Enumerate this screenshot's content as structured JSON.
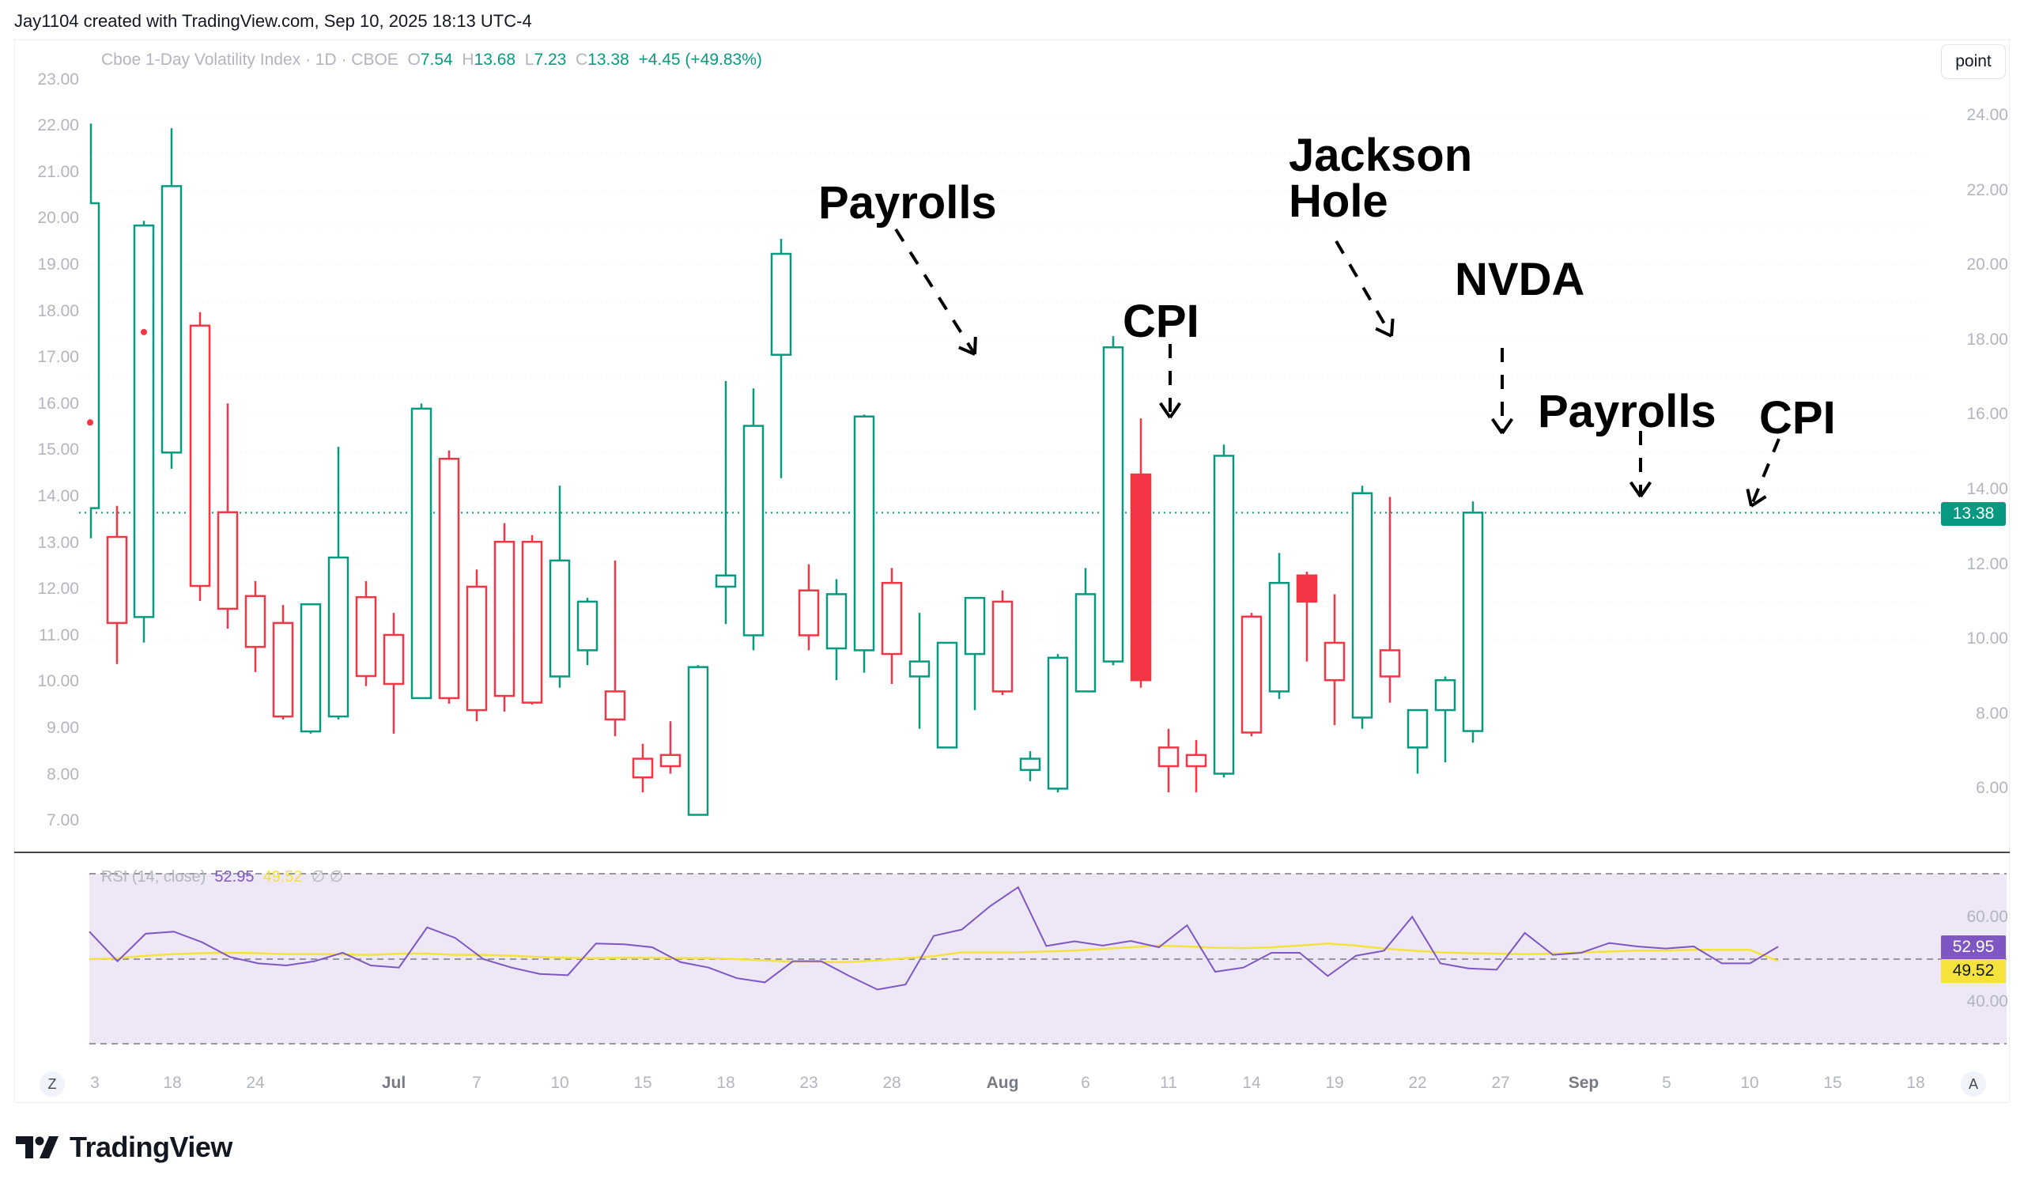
{
  "credit": "Jay1104 created with TradingView.com, Sep 10, 2025 18:13 UTC-4",
  "legend": {
    "title": "Cboe 1-Day Volatility Index · 1D · CBOE",
    "o_label": "O",
    "o_value": "7.54",
    "h_label": "H",
    "h_value": "13.68",
    "l_label": "L",
    "l_value": "7.23",
    "c_label": "C",
    "c_value": "13.38",
    "change": "+4.45 (+49.83%)"
  },
  "scale_button": "point",
  "colors": {
    "up": "#089981",
    "down": "#f23645",
    "rsi": "#7e57c2",
    "rsi_ma": "#f5e23a",
    "rsi_band": "#ede7f6"
  },
  "last_price_tag": "13.38",
  "rsi": {
    "name": "RSI (14, close)",
    "value": "52.95",
    "ma_value": "49.52",
    "hidden_icons": "∅ ∅"
  },
  "footer_logo": "TradingView",
  "z_button": "Z",
  "a_button": "A",
  "annotations": [
    {
      "text": "Payrolls",
      "target_index": 20
    },
    {
      "text": "CPI",
      "target_index": 25
    },
    {
      "text": "Jackson\nHole",
      "target_index": 31
    },
    {
      "text": "NVDA",
      "target_index": 35
    },
    {
      "text": "Payrolls",
      "target_index": 41
    },
    {
      "text": "CPI",
      "target_index": 44
    }
  ],
  "chart_data": {
    "type": "candlestick",
    "title": "Cboe 1-Day Volatility Index · 1D · CBOE",
    "right_axis": {
      "ticks": [
        "24.00",
        "22.00",
        "20.00",
        "18.00",
        "16.00",
        "14.00",
        "12.00",
        "10.00",
        "8.00",
        "6.00"
      ],
      "range": [
        4.6,
        25.0
      ]
    },
    "left_axis": {
      "ticks": [
        "23.00",
        "22.00",
        "21.00",
        "20.00",
        "19.00",
        "18.00",
        "17.00",
        "16.00",
        "15.00",
        "14.00",
        "13.00",
        "12.00",
        "11.00",
        "10.00",
        "9.00",
        "8.00",
        "7.00"
      ],
      "range": [
        6.5,
        23.5
      ]
    },
    "x_ticks": [
      {
        "label": "3",
        "index": -1.5
      },
      {
        "label": "18",
        "index": 0.5
      },
      {
        "label": "24",
        "index": 2.5
      },
      {
        "label": "Jul",
        "index": 5.5,
        "major": true
      },
      {
        "label": "7",
        "index": 7.5
      },
      {
        "label": "10",
        "index": 9.5
      },
      {
        "label": "15",
        "index": 11.5
      },
      {
        "label": "18",
        "index": 13.5
      },
      {
        "label": "23",
        "index": 15.5
      },
      {
        "label": "28",
        "index": 17.5
      },
      {
        "label": "Aug",
        "index": 20.1,
        "major": true
      },
      {
        "label": "6",
        "index": 22
      },
      {
        "label": "11",
        "index": 24
      },
      {
        "label": "14",
        "index": 26
      },
      {
        "label": "19",
        "index": 28
      },
      {
        "label": "22",
        "index": 30
      },
      {
        "label": "27",
        "index": 32
      },
      {
        "label": "Sep",
        "index": 34,
        "major": true
      },
      {
        "label": "5",
        "index": 36
      },
      {
        "label": "10",
        "index": 38
      },
      {
        "label": "15",
        "index": 40
      },
      {
        "label": "18",
        "index": 42
      }
    ],
    "overlay_series_left_axis": [
      {
        "o": 20.33,
        "h": 22.05,
        "l": 13.1,
        "c": 13.75,
        "step": true
      },
      {
        "o": 11.4,
        "h": 19.95,
        "l": 10.85,
        "c": 19.85,
        "dot": 17.55
      },
      {
        "o": 14.95,
        "h": 21.95,
        "l": 14.6,
        "c": 20.7
      },
      {
        "dot": 15.6,
        "dot_only": true,
        "at": -0.95
      }
    ],
    "candles": [
      {
        "o": 12.73,
        "h": 13.56,
        "l": 9.33,
        "c": 10.43
      },
      {
        "o": 18.38,
        "h": 18.74,
        "l": 11.02,
        "c": 11.42
      },
      {
        "o": 13.39,
        "h": 16.3,
        "l": 10.28,
        "c": 10.81
      },
      {
        "o": 11.15,
        "h": 11.55,
        "l": 9.12,
        "c": 9.79
      },
      {
        "o": 10.43,
        "h": 10.91,
        "l": 7.85,
        "c": 7.93
      },
      {
        "o": 7.53,
        "h": 10.93,
        "l": 7.47,
        "c": 10.93
      },
      {
        "o": 7.93,
        "h": 15.14,
        "l": 7.85,
        "c": 12.18
      },
      {
        "o": 11.12,
        "h": 11.55,
        "l": 8.74,
        "c": 9.01
      },
      {
        "o": 10.11,
        "h": 10.7,
        "l": 7.47,
        "c": 8.8
      },
      {
        "o": 8.42,
        "h": 16.3,
        "l": 8.42,
        "c": 16.16
      },
      {
        "o": 14.82,
        "h": 15.04,
        "l": 8.27,
        "c": 8.42
      },
      {
        "o": 11.4,
        "h": 11.86,
        "l": 7.8,
        "c": 8.1
      },
      {
        "o": 12.6,
        "h": 13.1,
        "l": 8.06,
        "c": 8.48
      },
      {
        "o": 12.6,
        "h": 12.78,
        "l": 8.25,
        "c": 8.3
      },
      {
        "o": 9.0,
        "h": 14.1,
        "l": 8.7,
        "c": 12.1
      },
      {
        "o": 9.7,
        "h": 11.1,
        "l": 9.3,
        "c": 11.0
      },
      {
        "o": 8.6,
        "h": 12.1,
        "l": 7.4,
        "c": 7.85
      },
      {
        "o": 6.8,
        "h": 7.2,
        "l": 5.9,
        "c": 6.3
      },
      {
        "o": 6.9,
        "h": 7.8,
        "l": 6.4,
        "c": 6.6
      },
      {
        "o": 5.3,
        "h": 9.3,
        "l": 5.3,
        "c": 9.25
      },
      {
        "o": 11.4,
        "h": 16.9,
        "l": 10.4,
        "c": 11.7
      },
      {
        "o": 10.1,
        "h": 16.7,
        "l": 9.7,
        "c": 15.7
      },
      {
        "o": 17.6,
        "h": 20.7,
        "l": 14.3,
        "c": 20.3
      },
      {
        "o": 11.3,
        "h": 12.0,
        "l": 9.7,
        "c": 10.1
      },
      {
        "o": 9.75,
        "h": 11.6,
        "l": 8.9,
        "c": 11.2
      },
      {
        "o": 9.7,
        "h": 16.0,
        "l": 9.1,
        "c": 15.95
      },
      {
        "o": 11.5,
        "h": 11.9,
        "l": 8.8,
        "c": 9.6
      },
      {
        "o": 9.0,
        "h": 10.7,
        "l": 7.6,
        "c": 9.4
      },
      {
        "o": 7.1,
        "h": 9.9,
        "l": 7.1,
        "c": 9.9
      },
      {
        "o": 9.6,
        "h": 11.1,
        "l": 8.1,
        "c": 11.1
      },
      {
        "o": 11.0,
        "h": 11.3,
        "l": 8.5,
        "c": 8.6
      },
      {
        "o": 6.5,
        "h": 7.0,
        "l": 6.2,
        "c": 6.8
      },
      {
        "o": 6.0,
        "h": 9.6,
        "l": 5.9,
        "c": 9.5
      },
      {
        "o": 8.6,
        "h": 11.9,
        "l": 8.6,
        "c": 11.2
      },
      {
        "o": 9.4,
        "h": 18.1,
        "l": 9.3,
        "c": 17.8
      },
      {
        "o": 14.4,
        "h": 15.9,
        "l": 8.7,
        "c": 8.9
      },
      {
        "o": 7.1,
        "h": 7.6,
        "l": 5.9,
        "c": 6.6
      },
      {
        "o": 6.9,
        "h": 7.3,
        "l": 5.9,
        "c": 6.6
      },
      {
        "o": 6.4,
        "h": 15.2,
        "l": 6.3,
        "c": 14.9
      },
      {
        "o": 10.6,
        "h": 10.7,
        "l": 7.4,
        "c": 7.5
      },
      {
        "o": 8.6,
        "h": 12.3,
        "l": 8.4,
        "c": 11.5
      },
      {
        "o": 11.7,
        "h": 11.8,
        "l": 9.4,
        "c": 11.0
      },
      {
        "o": 9.9,
        "h": 11.2,
        "l": 7.7,
        "c": 8.9
      },
      {
        "o": 7.9,
        "h": 14.1,
        "l": 7.6,
        "c": 13.9
      },
      {
        "o": 9.7,
        "h": 13.8,
        "l": 8.3,
        "c": 9.0
      },
      {
        "o": 7.1,
        "h": 8.0,
        "l": 6.4,
        "c": 8.1
      },
      {
        "o": 8.1,
        "h": 9.0,
        "l": 6.7,
        "c": 8.9
      },
      {
        "o": 7.54,
        "h": 13.68,
        "l": 7.23,
        "c": 13.38
      }
    ],
    "filled_down_indices": [
      35,
      41
    ],
    "rsi_values": [
      56.5,
      49.5,
      56,
      56.5,
      54,
      50.5,
      49,
      48.5,
      49.5,
      51.5,
      48.5,
      48,
      57.5,
      55,
      50,
      48,
      46.5,
      46.2,
      53.7,
      53.5,
      52.8,
      49.3,
      48,
      45.5,
      44.5,
      49.5,
      49.5,
      46,
      42.8,
      44,
      55.5,
      57,
      62.5,
      67,
      53.1,
      54.2,
      53.2,
      54.3,
      52.8,
      58,
      47,
      48,
      51.5,
      51.5,
      46,
      50.8,
      52,
      60,
      49,
      47.8,
      47.5,
      56.2,
      51,
      51.5,
      53.8,
      53,
      52.5,
      53,
      49,
      49,
      52.95
    ],
    "rsi_ma_values": [
      50,
      50.2,
      50.8,
      51.2,
      51.4,
      51.5,
      51.4,
      51.2,
      51.2,
      51.1,
      51,
      51.3,
      51.3,
      51,
      51,
      50.8,
      50.5,
      50.3,
      50.2,
      50.3,
      50.3,
      50.2,
      50.2,
      50,
      49.7,
      49.4,
      49.3,
      49.3,
      49.7,
      50.2,
      50.7,
      51.6,
      51.6,
      51.6,
      51.8,
      52,
      52.4,
      52.8,
      53.2,
      53,
      52.7,
      52.6,
      52.8,
      53.2,
      53.7,
      53.2,
      52.5,
      52,
      51.6,
      51.4,
      51.3,
      51.2,
      51.3,
      51.6,
      51.8,
      52,
      52,
      52.2,
      52.2,
      52.2,
      49.52
    ],
    "rsi_axis": {
      "ticks": [
        "60.00",
        "40.00"
      ],
      "band": [
        30,
        70
      ],
      "mid": 50
    }
  }
}
